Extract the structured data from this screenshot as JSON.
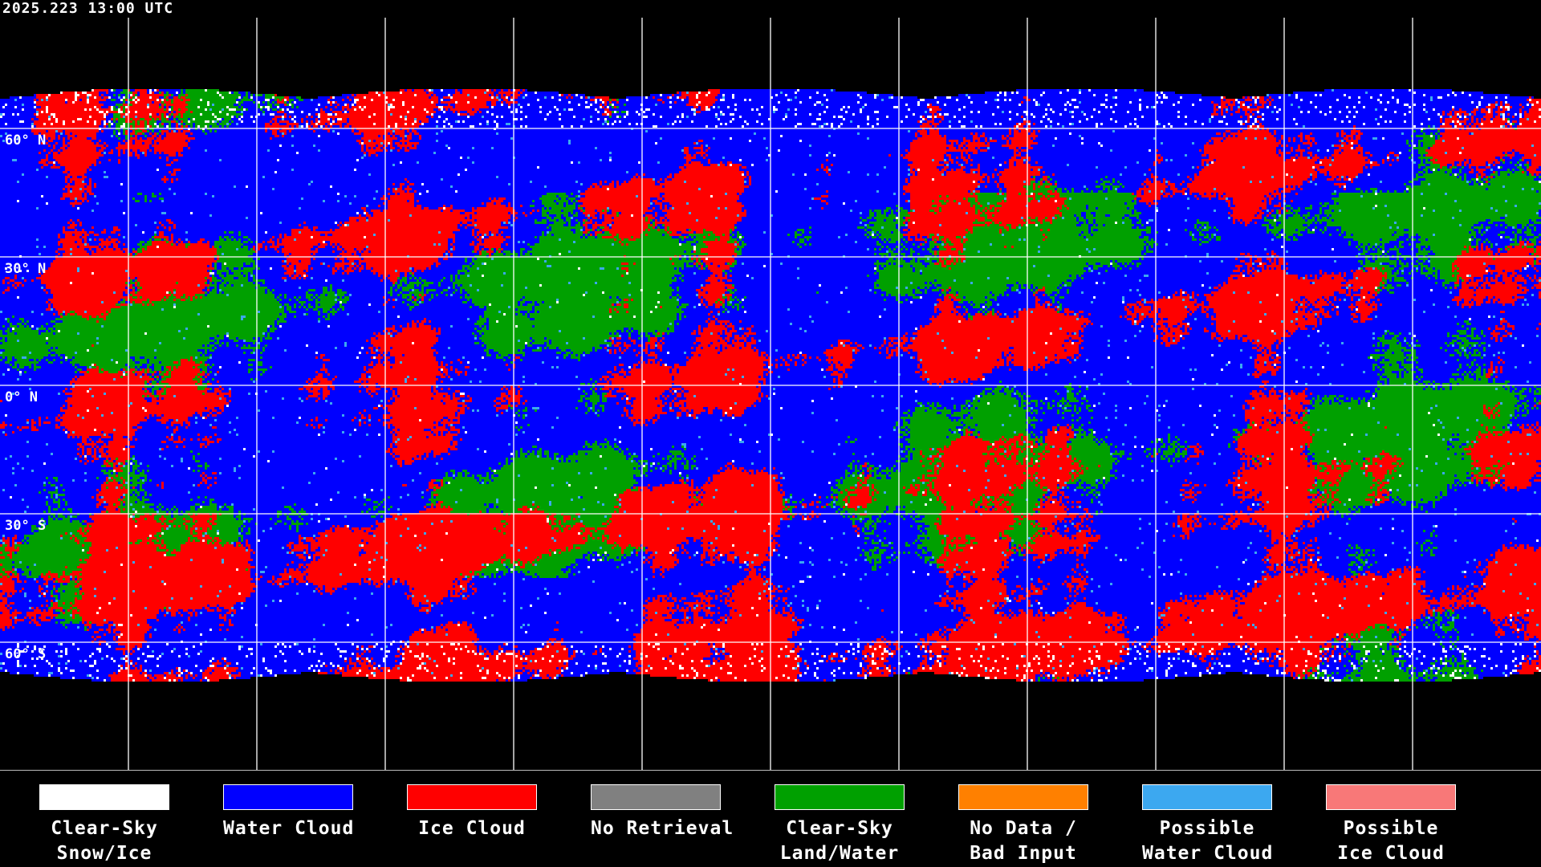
{
  "timestamp": "2025.223 13:00 UTC",
  "latitude_labels": [
    "60° N",
    "30° N",
    "0° N",
    "30° S",
    "60° S"
  ],
  "legend": [
    {
      "line1": "Clear-Sky",
      "line2": "Snow/Ice",
      "color": "#ffffff"
    },
    {
      "line1": "Water Cloud",
      "line2": "",
      "color": "#0000ff"
    },
    {
      "line1": "Ice Cloud",
      "line2": "",
      "color": "#ff0000"
    },
    {
      "line1": "No Retrieval",
      "line2": "",
      "color": "#808080"
    },
    {
      "line1": "Clear-Sky",
      "line2": "Land/Water",
      "color": "#00a000"
    },
    {
      "line1": "No Data /",
      "line2": "Bad Input",
      "color": "#ff8000"
    },
    {
      "line1": "Possible",
      "line2": "Water Cloud",
      "color": "#3ca8f0"
    },
    {
      "line1": "Possible",
      "line2": "Ice Cloud",
      "color": "#f87878"
    }
  ]
}
